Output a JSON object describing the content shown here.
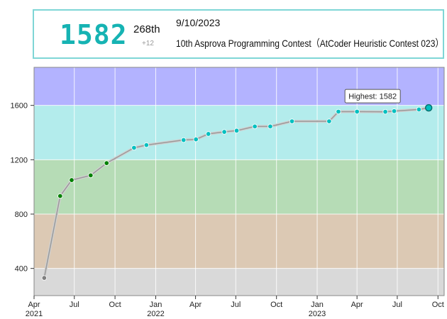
{
  "header": {
    "rating": "1582",
    "rank": "268th",
    "change": "+12",
    "date": "9/10/2023",
    "contest": "10th Asprova Programming Contest（AtCoder Heuristic Contest 023）"
  },
  "chart_data": {
    "type": "line",
    "title": "",
    "xlabel": "",
    "ylabel": "",
    "ylim": [
      200,
      1880
    ],
    "xlim": [
      "2021-04-01",
      "2023-10-15"
    ],
    "y_ticks": [
      400,
      800,
      1200,
      1600
    ],
    "x_ticks": [
      {
        "date": "2021-04-01",
        "label": "Apr",
        "year": "2021"
      },
      {
        "date": "2021-07-01",
        "label": "Jul",
        "year": ""
      },
      {
        "date": "2021-10-01",
        "label": "Oct",
        "year": ""
      },
      {
        "date": "2022-01-01",
        "label": "Jan",
        "year": "2022"
      },
      {
        "date": "2022-04-01",
        "label": "Apr",
        "year": ""
      },
      {
        "date": "2022-07-01",
        "label": "Jul",
        "year": ""
      },
      {
        "date": "2022-10-01",
        "label": "Oct",
        "year": ""
      },
      {
        "date": "2023-01-01",
        "label": "Jan",
        "year": "2023"
      },
      {
        "date": "2023-04-01",
        "label": "Apr",
        "year": ""
      },
      {
        "date": "2023-07-01",
        "label": "Jul",
        "year": ""
      },
      {
        "date": "2023-10-01",
        "label": "Oct",
        "year": ""
      }
    ],
    "bands": [
      {
        "from": 0,
        "to": 400,
        "color": "#d9d9d9"
      },
      {
        "from": 400,
        "to": 800,
        "color": "#dcc9b4"
      },
      {
        "from": 800,
        "to": 1200,
        "color": "#b6dcb6"
      },
      {
        "from": 1200,
        "to": 1600,
        "color": "#b3ecec"
      },
      {
        "from": 1600,
        "to": 2000,
        "color": "#b3b3ff"
      }
    ],
    "series": [
      {
        "x": [
          "2021-04-24",
          "2021-05-30",
          "2021-06-25",
          "2021-08-07",
          "2021-09-12",
          "2021-11-13",
          "2021-12-11",
          "2022-03-05",
          "2022-04-02",
          "2022-04-30",
          "2022-06-05",
          "2022-07-03",
          "2022-08-13",
          "2022-09-17",
          "2022-11-05",
          "2023-01-28",
          "2023-02-18",
          "2023-04-01",
          "2023-06-04",
          "2023-06-24",
          "2023-08-19",
          "2023-09-10"
        ],
        "values": [
          330,
          933,
          1050,
          1085,
          1175,
          1288,
          1308,
          1345,
          1350,
          1390,
          1405,
          1414,
          1445,
          1445,
          1483,
          1483,
          1554,
          1554,
          1553,
          1558,
          1570,
          1582
        ]
      }
    ],
    "highlight": {
      "label": "Highest: 1582",
      "index": 21
    }
  },
  "colors": {
    "accent": "#16b3b3",
    "line": "#aaaaaa",
    "gray_point": "#808080",
    "green_point": "#008000",
    "cyan_point": "#00c0c0"
  }
}
